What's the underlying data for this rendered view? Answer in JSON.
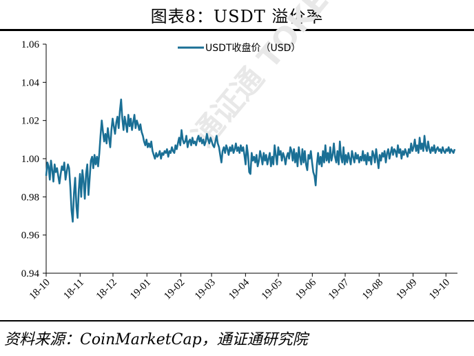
{
  "title": "图表8：USDT 溢价率",
  "source": "资料来源：CoinMarketCap，通证通研究院",
  "colors": {
    "series": "#1a6f95",
    "axis": "#000000",
    "watermark": "#e6e6e6"
  },
  "watermark": "通证通 TOKEN ROLL",
  "chart_data": {
    "type": "line",
    "xlabel": "",
    "ylabel": "",
    "ylim": [
      0.94,
      1.06
    ],
    "yticks": [
      "0.94",
      "0.96",
      "0.98",
      "1.00",
      "1.02",
      "1.04",
      "1.06"
    ],
    "xticks": [
      "18-10",
      "18-11",
      "18-12",
      "19-01",
      "19-02",
      "19-03",
      "19-04",
      "19-05",
      "19-06",
      "19-07",
      "19-08",
      "19-09",
      "19-10"
    ],
    "legend": "top-center",
    "grid": false,
    "series": [
      {
        "name": "USDT收盘价（USD）",
        "x_start": "2018-10-01",
        "x_end": "2019-10-09",
        "values": [
          0.991,
          0.998,
          0.996,
          0.989,
          0.999,
          0.994,
          0.988,
          0.997,
          0.993,
          0.995,
          0.991,
          0.987,
          0.992,
          0.996,
          0.994,
          0.998,
          0.989,
          0.993,
          0.997,
          0.995,
          0.985,
          0.973,
          0.967,
          0.982,
          0.99,
          0.975,
          0.969,
          0.984,
          0.992,
          0.98,
          0.994,
          0.988,
          0.979,
          0.992,
          0.997,
          0.981,
          0.99,
          0.999,
          1.001,
          0.995,
          1.002,
          0.997,
          1.001,
          0.996,
          1.003,
          1.012,
          1.02,
          1.014,
          1.009,
          1.013,
          1.008,
          1.016,
          1.011,
          1.006,
          1.015,
          1.021,
          1.017,
          1.013,
          1.019,
          1.022,
          1.016,
          1.025,
          1.031,
          1.021,
          1.015,
          1.022,
          1.018,
          1.014,
          1.023,
          1.017,
          1.021,
          1.015,
          1.019,
          1.023,
          1.016,
          1.02,
          1.018,
          1.015,
          1.018,
          1.014,
          1.012,
          1.009,
          1.007,
          1.01,
          1.006,
          1.008,
          1.006,
          1.009,
          1.004,
          1.002,
          1.0,
          1.003,
          1.001,
          1.002,
          1.004,
          1.0,
          1.003,
          1.002,
          1.004,
          1.003,
          1.005,
          1.001,
          1.004,
          1.003,
          1.006,
          1.004,
          1.003,
          1.007,
          1.005,
          1.008,
          1.011,
          1.007,
          1.015,
          1.01,
          1.008,
          1.009,
          1.012,
          1.006,
          1.009,
          1.01,
          1.007,
          1.011,
          1.008,
          1.009,
          1.007,
          1.01,
          1.012,
          1.009,
          1.011,
          1.008,
          1.01,
          1.007,
          1.009,
          1.013,
          1.01,
          1.008,
          1.011,
          1.009,
          1.007,
          1.006,
          1.009,
          1.012,
          1.008,
          1.006,
          1.002,
          0.998,
          1.004,
          1.006,
          1.003,
          1.007,
          1.005,
          1.002,
          1.006,
          1.004,
          1.007,
          1.003,
          1.005,
          1.008,
          1.004,
          1.006,
          1.003,
          1.007,
          1.004,
          1.006,
          1.002,
          0.997,
          1.007,
          1.002,
          0.993,
          0.992,
          1.003,
          0.999,
          1.001,
          0.998,
          1.002,
          0.996,
          0.999,
          1.004,
          1.001,
          0.997,
          1.003,
          0.999,
          1.002,
          0.997,
          1.0,
          1.003,
          0.996,
          1.001,
          0.997,
          1.007,
          1.002,
          0.997,
          1.006,
          1.002,
          1.004,
          0.999,
          1.003,
          1.001,
          0.997,
          1.001,
          1.003,
          1.0,
          1.006,
          1.004,
          0.999,
          1.005,
          0.998,
          1.003,
          0.996,
          1.006,
          1.001,
          0.997,
          1.005,
          0.998,
          1.004,
          0.997,
          0.994,
          1.002,
          1.0,
          1.004,
          0.998,
          0.993,
          0.991,
          0.986,
          0.997,
          1.003,
          0.997,
          1.001,
          0.996,
          1.004,
          0.998,
          1.007,
          0.999,
          1.003,
          0.998,
          1.006,
          0.999,
          1.002,
          1.008,
          1.001,
          0.998,
          1.004,
          0.997,
          1.009,
          1.001,
          0.998,
          1.006,
          0.997,
          1.002,
          0.998,
          1.003,
          1.0,
          0.997,
          1.004,
          1.001,
          0.998,
          1.003,
          1.0,
          1.002,
          0.998,
          1.001,
          0.999,
          1.004,
          0.999,
          1.002,
          0.997,
          1.003,
          0.999,
          1.001,
          0.997,
          1.004,
          1.002,
          0.998,
          1.005,
          1.0,
          0.995,
          1.002,
          0.999,
          1.003,
          1.001,
          1.004,
          0.998,
          1.003,
          1.005,
          1.0,
          1.003,
          1.006,
          1.002,
          1.005,
          1.004,
          1.001,
          1.007,
          1.003,
          1.005,
          1.0,
          1.004,
          1.002,
          1.005,
          1.003,
          1.001,
          1.005,
          1.003,
          1.008,
          1.004,
          1.006,
          1.01,
          1.004,
          1.007,
          1.003,
          1.011,
          1.005,
          1.008,
          1.004,
          1.012,
          1.006,
          1.004,
          1.009,
          1.005,
          1.003,
          1.006,
          1.004,
          1.007,
          1.003,
          1.005,
          1.006,
          1.004,
          1.005,
          1.003,
          1.006,
          1.004,
          1.003,
          1.005,
          1.004,
          1.006,
          1.003,
          1.005,
          1.004,
          1.003,
          1.005
        ]
      }
    ]
  }
}
